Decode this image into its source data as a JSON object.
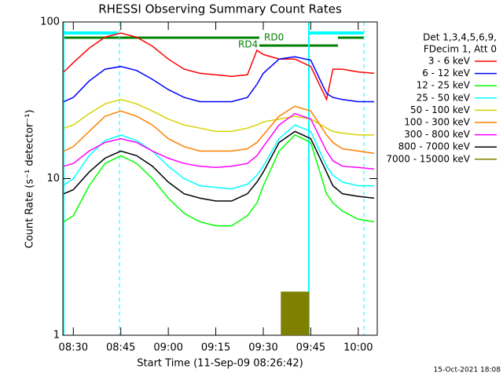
{
  "chart_data": {
    "type": "line",
    "title": "RHESSI Observing Summary Count Rates",
    "x_label": "Start Time (11-Sep-09 08:26:42)",
    "y_label": "Count Rate (s⁻¹ detector⁻¹)",
    "legend_header": [
      "Det 1,3,4,5,6,9,",
      "FDecim 1, Att 0"
    ],
    "annotations": [
      "RD4",
      "RD0"
    ],
    "footer": "15-Oct-2021 18:08",
    "log_y": true,
    "xlim": [
      26.7,
      126
    ],
    "xticks": [
      {
        "value": 30,
        "label": "08:30"
      },
      {
        "value": 45,
        "label": "08:45"
      },
      {
        "value": 60,
        "label": "09:00"
      },
      {
        "value": 75,
        "label": "09:15"
      },
      {
        "value": 90,
        "label": "09:30"
      },
      {
        "value": 105,
        "label": "09:45"
      },
      {
        "value": 120,
        "label": "10:00"
      }
    ],
    "ylim": [
      1,
      100
    ],
    "yticks": [
      1,
      10,
      100
    ],
    "x": [
      27,
      30,
      35,
      40,
      45,
      50,
      55,
      60,
      65,
      70,
      75,
      80,
      85,
      88,
      90,
      95,
      100,
      105,
      110,
      112,
      115,
      120,
      125
    ],
    "series": [
      {
        "name": "3 - 6 keV",
        "color": "#ff0000",
        "values": [
          48,
          55,
          68,
          80,
          85,
          80,
          70,
          58,
          50,
          47,
          46,
          45,
          46,
          66,
          62,
          58,
          58,
          52,
          32,
          50,
          50,
          48,
          47
        ]
      },
      {
        "name": "6 - 12 keV",
        "color": "#0000ff",
        "values": [
          31,
          33,
          42,
          50,
          52,
          49,
          43,
          37,
          33,
          31,
          31,
          31,
          33,
          40,
          47,
          58,
          60,
          57,
          35,
          33,
          32,
          31,
          31
        ]
      },
      {
        "name": "12 - 25 keV",
        "color": "#00ff00",
        "values": [
          5.3,
          5.8,
          9,
          12.5,
          14,
          12.5,
          10,
          7.5,
          6,
          5.3,
          5,
          5,
          5.8,
          7,
          9,
          15,
          19,
          17,
          8,
          7,
          6.2,
          5.5,
          5.3
        ]
      },
      {
        "name": "25 - 50 keV",
        "color": "#00ffff",
        "values": [
          9.1,
          10,
          14,
          17.5,
          19,
          17.5,
          15,
          12,
          10,
          9,
          8.8,
          8.6,
          9.2,
          10.5,
          12,
          18,
          22,
          20,
          12,
          10.5,
          9.5,
          9,
          9
        ]
      },
      {
        "name": "50 - 100 keV",
        "color": "#d4d400",
        "values": [
          21,
          22,
          26,
          30,
          32,
          30,
          27,
          24,
          22,
          21,
          20,
          20,
          21,
          22,
          23,
          24,
          25,
          24,
          21,
          20,
          19.5,
          19,
          19
        ]
      },
      {
        "name": "100 - 300 keV",
        "color": "#ff8000",
        "values": [
          15,
          16,
          20,
          25,
          27,
          25,
          22,
          18,
          16,
          15,
          15,
          15,
          15.5,
          17,
          19,
          25,
          29,
          27,
          19,
          17,
          15.5,
          15,
          14.5
        ]
      },
      {
        "name": "300 - 800 keV",
        "color": "#ff00ff",
        "values": [
          12,
          12.5,
          15,
          17,
          18,
          17,
          15,
          13.5,
          12.5,
          12,
          11.8,
          12,
          12.5,
          14,
          16,
          22,
          26,
          24,
          15,
          13,
          12,
          11.8,
          11.5
        ]
      },
      {
        "name": "800 - 7000 keV",
        "color": "#000000",
        "values": [
          8,
          8.5,
          11,
          13.5,
          15,
          14,
          12,
          9.5,
          8,
          7.5,
          7.2,
          7.2,
          8,
          9.5,
          11,
          17,
          20,
          18,
          11,
          9,
          8,
          7.7,
          7.5
        ]
      },
      {
        "name": "7000 - 15000 keV",
        "color": "#808000",
        "values": [
          null,
          null,
          null,
          null,
          null,
          null,
          null,
          null,
          null,
          null,
          null,
          null,
          null,
          null,
          null,
          null,
          1.9,
          null,
          null,
          null,
          null,
          null,
          null
        ]
      }
    ]
  }
}
